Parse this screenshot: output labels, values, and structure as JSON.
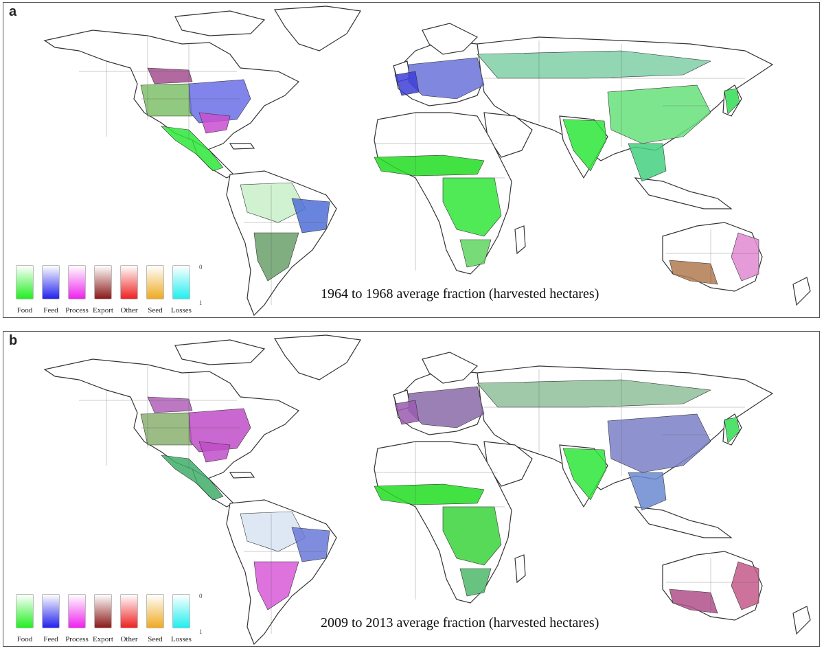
{
  "panels": [
    {
      "label": "a",
      "caption": "1964 to 1968 average fraction (harvested hectares)",
      "palette": {
        "na_north": "#a34f8f",
        "na_plains": "#7fbf6a",
        "na_east": "#6b6fe6",
        "na_south": "#c84fd0",
        "mexico": "#2ee63a",
        "amazon": "#c8f0c8",
        "brazil_east": "#4f6fd6",
        "brazil_south": "#6aa06a",
        "sahel": "#22dd22",
        "east_africa": "#33e63a",
        "south_africa": "#5fd65f",
        "europe": "#6a72d8",
        "europe_west": "#3e3ed8",
        "russia": "#7fcfa6",
        "india": "#2ee63a",
        "china": "#66e07a",
        "se_asia": "#44d080",
        "japan": "#33dd55",
        "aus_east": "#e08ad0",
        "aus_south": "#b07a50"
      }
    },
    {
      "label": "b",
      "caption": "2009 to 2013 average fraction (harvested hectares)",
      "palette": {
        "na_north": "#b060b8",
        "na_plains": "#8ab070",
        "na_east": "#c04ec8",
        "na_south": "#c04ec8",
        "mexico": "#3fae6a",
        "amazon": "#d8e4f2",
        "brazil_east": "#6a78d8",
        "brazil_south": "#d85ad8",
        "sahel": "#22dd22",
        "east_africa": "#3ad43a",
        "south_africa": "#4fb86a",
        "europe": "#8a6aa8",
        "europe_west": "#9a5ab0",
        "russia": "#8fbf9a",
        "india": "#2ee63a",
        "china": "#7a80c8",
        "se_asia": "#6a8ad0",
        "japan": "#33dd55",
        "aus_east": "#c45a8a",
        "aus_south": "#b0508a"
      }
    }
  ],
  "legend": {
    "items": [
      {
        "label": "Food",
        "color": "#22ee22"
      },
      {
        "label": "Feed",
        "color": "#2222ee"
      },
      {
        "label": "Process",
        "color": "#ee22ee"
      },
      {
        "label": "Export",
        "color": "#8b1a1a"
      },
      {
        "label": "Other",
        "color": "#ee2222"
      },
      {
        "label": "Seed",
        "color": "#eeaa22"
      },
      {
        "label": "Losses",
        "color": "#22eeee"
      }
    ],
    "scale_top": "0",
    "scale_bottom": "1"
  }
}
